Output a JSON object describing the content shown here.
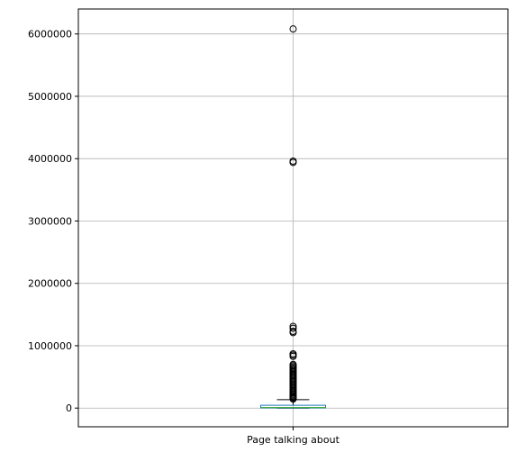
{
  "chart_data": {
    "type": "box",
    "categories": [
      "Page talking about"
    ],
    "ylim": [
      -300000,
      6400000
    ],
    "yticks": [
      0,
      1000000,
      2000000,
      3000000,
      4000000,
      5000000,
      6000000
    ],
    "ytick_labels": [
      "0",
      "1000000",
      "2000000",
      "3000000",
      "4000000",
      "5000000",
      "6000000"
    ],
    "grid": true,
    "box": {
      "whisker_low": 0,
      "q1": 2000,
      "median": 9000,
      "q3": 45000,
      "whisker_high": 135000
    },
    "outliers": [
      6080000,
      3960000,
      3940000,
      1310000,
      1280000,
      1230000,
      1210000,
      870000,
      850000,
      830000,
      700000,
      680000,
      660000,
      640000,
      620000,
      600000,
      580000,
      560000,
      540000,
      520000,
      500000,
      480000,
      460000,
      440000,
      420000,
      400000,
      380000,
      360000,
      340000,
      320000,
      300000,
      280000,
      260000,
      240000,
      220000,
      200000,
      185000,
      170000,
      155000,
      145000
    ],
    "colors": {
      "box": "#1f77b4",
      "median": "#2ca02c",
      "whisker": "#000000",
      "grid": "#b0b0b0",
      "outlier_edge": "#000000"
    }
  }
}
